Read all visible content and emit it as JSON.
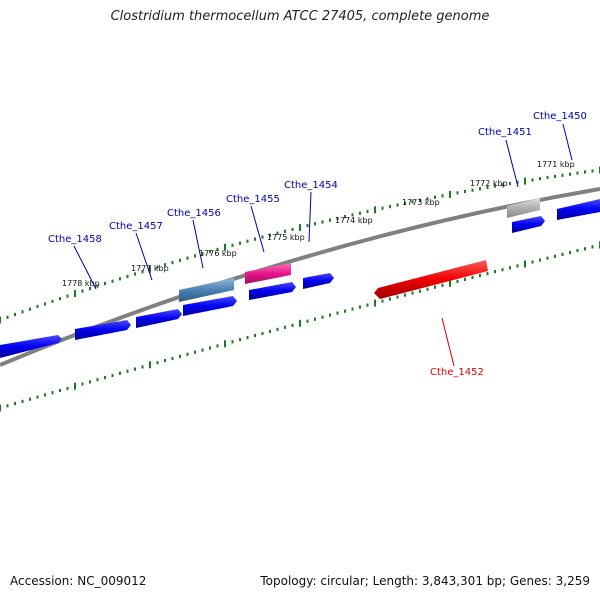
{
  "title": "Clostridium thermocellum ATCC 27405, complete genome",
  "accession": "Accession: NC_009012",
  "topology": "Topology: circular; Length: 3,843,301 bp; Genes: 3,259",
  "colors": {
    "backbone": "#808080",
    "tick": "#1e7a1e",
    "gene": "#0000ee",
    "label": "#0000aa",
    "highlight_label": "#dd0000",
    "rna_pink": "#e8178a",
    "rna_steel": "#4a82b4",
    "pseudo_gray": "#b0b0b0",
    "focus_red": "#ee0000"
  },
  "kbp_labels": [
    "1771 kbp",
    "1772 kbp",
    "1773 kbp",
    "1774 kbp",
    "1775 kbp",
    "1776 kbp",
    "1777 kbp",
    "1778 kbp"
  ],
  "gene_labels": [
    {
      "text": "Cthe_1450",
      "kind": "normal"
    },
    {
      "text": "Cthe_1451",
      "kind": "normal"
    },
    {
      "text": "Cthe_1452",
      "kind": "highlight"
    },
    {
      "text": "Cthe_1454",
      "kind": "normal"
    },
    {
      "text": "Cthe_1455",
      "kind": "normal"
    },
    {
      "text": "Cthe_1456",
      "kind": "normal"
    },
    {
      "text": "Cthe_1457",
      "kind": "normal"
    },
    {
      "text": "Cthe_1458",
      "kind": "normal"
    }
  ]
}
